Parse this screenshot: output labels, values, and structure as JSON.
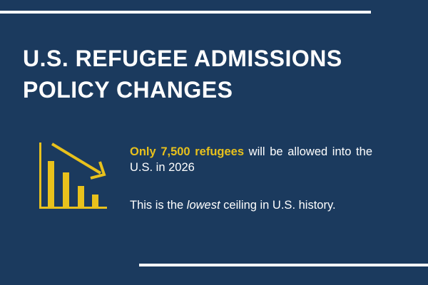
{
  "title_line1": "U.S. REFUGEE ADMISSIONS",
  "title_line2": "POLICY CHANGES",
  "fact": {
    "highlight": "Only 7,500 refugees",
    "rest": " will be allowed into the U.S. in 2026"
  },
  "note": {
    "before": "This is the ",
    "emphasis": "lowest",
    "after": " ceiling in U.S. history."
  },
  "colors": {
    "background": "#1b3a5e",
    "accent": "#e8c11c"
  }
}
